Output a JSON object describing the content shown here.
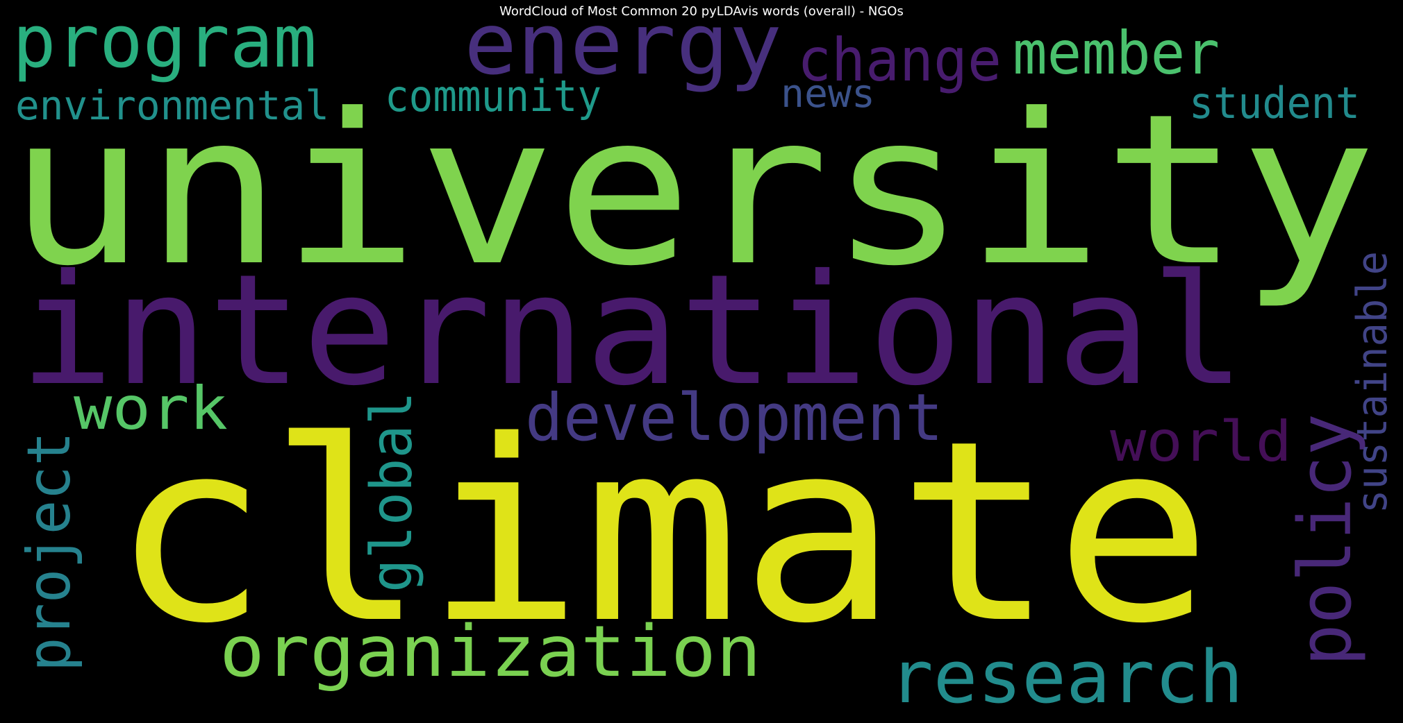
{
  "chart_data": {
    "type": "wordcloud",
    "title": "WordCloud of Most Common 20 pyLDAvis words (overall) - NGOs",
    "background": "#000000",
    "words": [
      {
        "text": "university",
        "color": "#7fd34e"
      },
      {
        "text": "climate",
        "color": "#dfe318"
      },
      {
        "text": "international",
        "color": "#481a6c"
      },
      {
        "text": "energy",
        "color": "#472f7d"
      },
      {
        "text": "program",
        "color": "#29af7f"
      },
      {
        "text": "change",
        "color": "#481c6e"
      },
      {
        "text": "member",
        "color": "#4ac16d"
      },
      {
        "text": "community",
        "color": "#1f9a8a"
      },
      {
        "text": "environmental",
        "color": "#21918c"
      },
      {
        "text": "news",
        "color": "#3b528b"
      },
      {
        "text": "student",
        "color": "#228b8d"
      },
      {
        "text": "work",
        "color": "#56c667"
      },
      {
        "text": "development",
        "color": "#443a83"
      },
      {
        "text": "world",
        "color": "#440f57"
      },
      {
        "text": "project",
        "color": "#26828e"
      },
      {
        "text": "global",
        "color": "#1f968b"
      },
      {
        "text": "organization",
        "color": "#7ad151"
      },
      {
        "text": "policy",
        "color": "#482878"
      },
      {
        "text": "sustainable",
        "color": "#414487"
      },
      {
        "text": "research",
        "color": "#228c8d"
      }
    ]
  }
}
